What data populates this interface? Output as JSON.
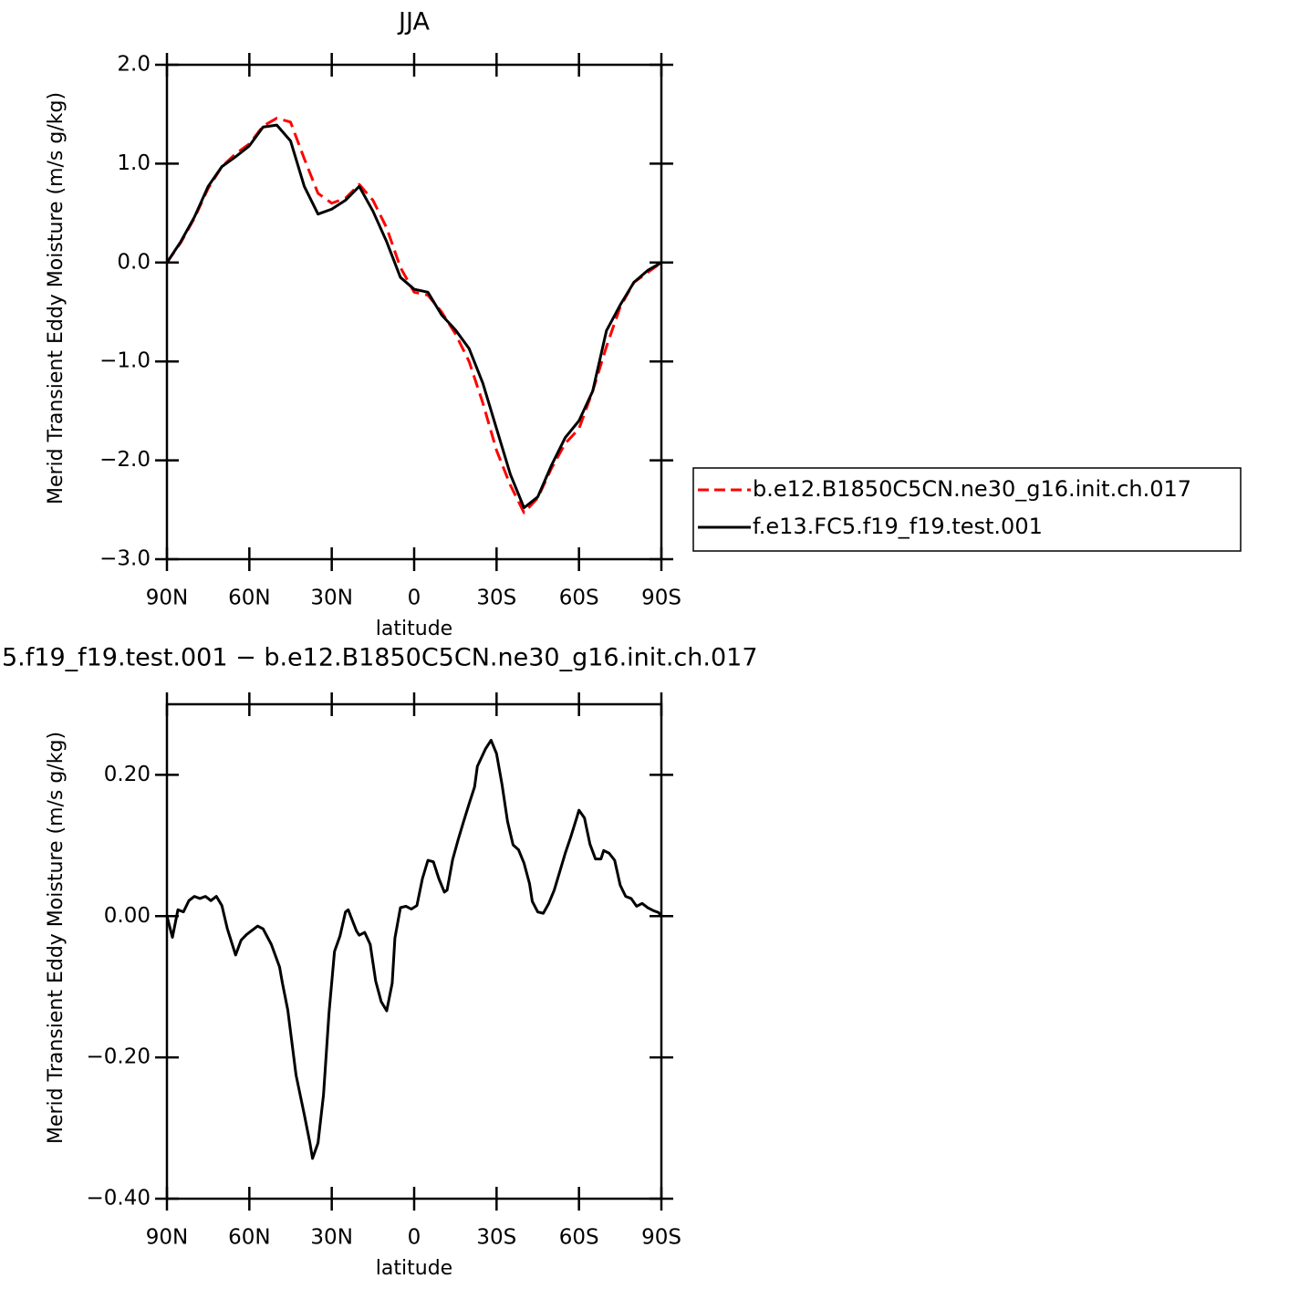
{
  "chart_data": [
    {
      "type": "line",
      "title": "JJA",
      "x_label": "latitude",
      "y_label": "Merid Transient Eddy Moisture (m/s g/kg)",
      "x": [
        90,
        85,
        80,
        75,
        70,
        65,
        60,
        55,
        50,
        45,
        40,
        35,
        30,
        25,
        20,
        15,
        10,
        5,
        0,
        -5,
        -10,
        -15,
        -20,
        -25,
        -30,
        -35,
        -40,
        -45,
        -50,
        -55,
        -60,
        -65,
        -70,
        -75,
        -80,
        -85,
        -90
      ],
      "series": [
        {
          "name": "b.e12.B1850C5CN.ne30_g16.init.ch.017",
          "color": "#ff0000",
          "style": "dashed",
          "values": [
            0,
            0.2,
            0.45,
            0.75,
            0.97,
            1.1,
            1.2,
            1.38,
            1.46,
            1.42,
            1.05,
            0.7,
            0.6,
            0.65,
            0.79,
            0.63,
            0.35,
            -0.05,
            -0.3,
            -0.33,
            -0.5,
            -0.72,
            -1.0,
            -1.42,
            -1.9,
            -2.25,
            -2.53,
            -2.38,
            -2.08,
            -1.83,
            -1.68,
            -1.3,
            -0.85,
            -0.45,
            -0.2,
            -0.1,
            0
          ]
        },
        {
          "name": "f.e13.FC5.f19_f19.test.001",
          "color": "#000000",
          "style": "solid",
          "values": [
            0,
            0.21,
            0.46,
            0.77,
            0.97,
            1.07,
            1.18,
            1.37,
            1.39,
            1.23,
            0.77,
            0.49,
            0.54,
            0.63,
            0.77,
            0.52,
            0.21,
            -0.15,
            -0.27,
            -0.3,
            -0.53,
            -0.68,
            -0.87,
            -1.22,
            -1.68,
            -2.14,
            -2.48,
            -2.37,
            -2.05,
            -1.77,
            -1.6,
            -1.3,
            -0.69,
            -0.43,
            -0.2,
            -0.08,
            0
          ]
        }
      ],
      "xlim": [
        90,
        -90
      ],
      "xticks": [
        {
          "value": 90,
          "label": "90N"
        },
        {
          "value": 60,
          "label": "60N"
        },
        {
          "value": 30,
          "label": "30N"
        },
        0,
        {
          "value": -30,
          "label": "30S"
        },
        {
          "value": -60,
          "label": "60S"
        },
        {
          "value": -90,
          "label": "90S"
        }
      ],
      "ylim": [
        -3,
        2
      ],
      "yticks": [
        {
          "value": -3,
          "label": "−3.0"
        },
        {
          "value": -2,
          "label": "−2.0"
        },
        {
          "value": -1,
          "label": "−1.0"
        },
        {
          "value": 0,
          "label": "0.0"
        },
        {
          "value": 1,
          "label": "1.0"
        },
        {
          "value": 2,
          "label": "2.0"
        }
      ],
      "legend": "right"
    },
    {
      "type": "line",
      "title": "5.f19_f19.test.001 − b.e12.B1850C5CN.ne30_g16.init.ch.017",
      "x_label": "latitude",
      "y_label": "Merid Transient Eddy Moisture (m/s g/kg)",
      "x": [
        90,
        88,
        86,
        84,
        82,
        80,
        78,
        76,
        74,
        72,
        70,
        68,
        65,
        63,
        61,
        57,
        55,
        52,
        49,
        48,
        46,
        43,
        40,
        38,
        37,
        35,
        33,
        31,
        29,
        27,
        25,
        24,
        21,
        20,
        18,
        16,
        14,
        12,
        10,
        8,
        7,
        5,
        3,
        1,
        -1,
        -3,
        -5,
        -7,
        -9,
        -11,
        -12,
        -14,
        -16,
        -18,
        -20,
        -22,
        -23,
        -26,
        -28,
        -30,
        -32,
        -34,
        -36,
        -38,
        -40,
        -42,
        -43,
        -45,
        -47,
        -49,
        -51,
        -53,
        -55,
        -57,
        -59,
        -60,
        -62,
        -64,
        -66,
        -68,
        -69,
        -71,
        -73,
        -75,
        -77,
        -79,
        -81,
        -83,
        -85,
        -87,
        -89,
        -90
      ],
      "series": [
        {
          "color": "#000000",
          "style": "solid",
          "values": [
            0,
            -0.03,
            0.009,
            0.006,
            0.022,
            0.028,
            0.025,
            0.028,
            0.022,
            0.028,
            0.015,
            -0.018,
            -0.055,
            -0.034,
            -0.026,
            -0.014,
            -0.018,
            -0.04,
            -0.072,
            -0.094,
            -0.133,
            -0.225,
            -0.281,
            -0.32,
            -0.343,
            -0.321,
            -0.253,
            -0.137,
            -0.05,
            -0.028,
            0.006,
            0.009,
            -0.021,
            -0.027,
            -0.023,
            -0.04,
            -0.092,
            -0.121,
            -0.134,
            -0.095,
            -0.031,
            0.012,
            0.014,
            0.01,
            0.015,
            0.053,
            0.079,
            0.077,
            0.053,
            0.034,
            0.037,
            0.08,
            0.108,
            0.134,
            0.159,
            0.183,
            0.212,
            0.237,
            0.249,
            0.23,
            0.186,
            0.134,
            0.101,
            0.094,
            0.075,
            0.046,
            0.021,
            0.006,
            0.004,
            0.018,
            0.037,
            0.063,
            0.089,
            0.112,
            0.137,
            0.15,
            0.139,
            0.102,
            0.081,
            0.081,
            0.093,
            0.089,
            0.079,
            0.044,
            0.028,
            0.025,
            0.014,
            0.018,
            0.012,
            0.008,
            0.005,
            0
          ]
        }
      ],
      "xlim": [
        90,
        -90
      ],
      "xticks": [
        {
          "value": 90,
          "label": "90N"
        },
        {
          "value": 60,
          "label": "60N"
        },
        {
          "value": 30,
          "label": "30N"
        },
        0,
        {
          "value": -30,
          "label": "30S"
        },
        {
          "value": -60,
          "label": "60S"
        },
        {
          "value": -90,
          "label": "90S"
        }
      ],
      "ylim": [
        -0.4,
        0.3
      ],
      "yticks": [
        {
          "value": -0.4,
          "label": "−0.40"
        },
        {
          "value": -0.2,
          "label": "−0.20"
        },
        {
          "value": 0,
          "label": "0.00"
        },
        {
          "value": 0.2,
          "label": "0.20"
        }
      ]
    }
  ]
}
